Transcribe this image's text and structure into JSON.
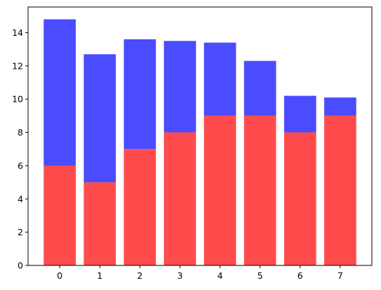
{
  "chart_data": {
    "type": "bar",
    "stacked": true,
    "categories": [
      "0",
      "1",
      "2",
      "3",
      "4",
      "5",
      "6",
      "7"
    ],
    "series": [
      {
        "values": [
          6,
          5,
          7,
          8,
          9,
          9,
          8,
          9
        ],
        "color": "#ff4b4b"
      },
      {
        "values": [
          8.8,
          7.7,
          6.6,
          5.5,
          4.4,
          3.3,
          2.2,
          1.1
        ],
        "color": "#4b4bff"
      }
    ],
    "ylim": [
      0,
      15
    ],
    "yticks": [
      0,
      2,
      4,
      6,
      8,
      10,
      12,
      14
    ],
    "xticks": [
      "0",
      "1",
      "2",
      "3",
      "4",
      "5",
      "6",
      "7"
    ],
    "xlabel": "",
    "ylabel": "",
    "title": "",
    "grid": false
  }
}
